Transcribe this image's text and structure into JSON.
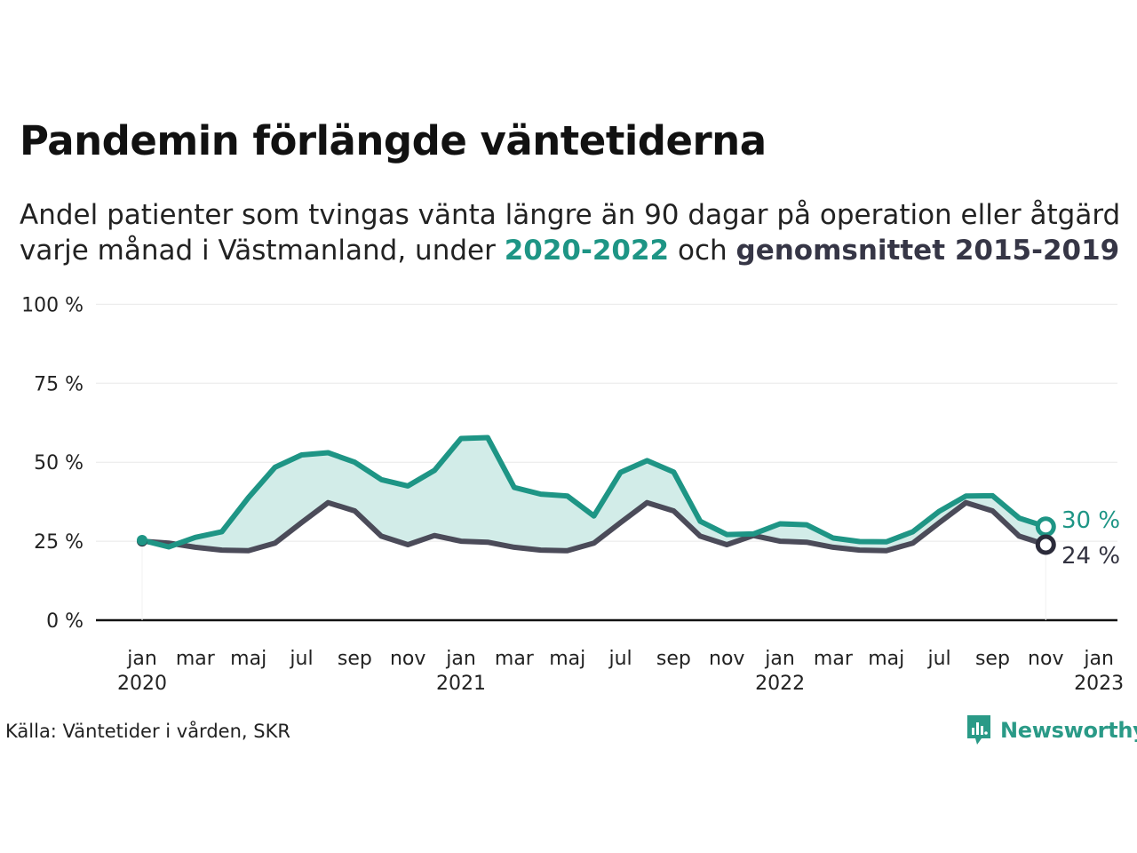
{
  "header": {
    "title": "Pandemin förlängde väntetiderna",
    "subtitle_line1": "Andel patienter som tvingas vänta längre än 90 dagar på operation eller åtgärd",
    "subtitle_line2_pre": "varje månad i Västmanland, under ",
    "subtitle_hl_a": "2020-2022",
    "subtitle_mid": " och ",
    "subtitle_hl_b": "genomsnittet 2015-2019"
  },
  "footer": {
    "source": "Källa: Väntetider i vården, SKR",
    "logo_text": "Newsworthy"
  },
  "colors": {
    "series_a": "#1e9585",
    "series_b": "#4b4b59",
    "marker_b": "#2b2b3a",
    "fill": "#d2ece8",
    "grid": "#e8e8e8",
    "axis": "#111111",
    "logo": "#2a9a87"
  },
  "chart_data": {
    "type": "line",
    "title": "Pandemin förlängde väntetiderna",
    "ylim": [
      0,
      100
    ],
    "y_ticks": [
      0,
      25,
      50,
      75,
      100
    ],
    "y_tick_labels": [
      "0 %",
      "25 %",
      "50 %",
      "75 %",
      "100 %"
    ],
    "x_tick_labels": [
      [
        "jan",
        "2020"
      ],
      [
        "mar",
        ""
      ],
      [
        "maj",
        ""
      ],
      [
        "jul",
        ""
      ],
      [
        "sep",
        ""
      ],
      [
        "nov",
        ""
      ],
      [
        "jan",
        "2021"
      ],
      [
        "mar",
        ""
      ],
      [
        "maj",
        ""
      ],
      [
        "jul",
        ""
      ],
      [
        "sep",
        ""
      ],
      [
        "nov",
        ""
      ],
      [
        "jan",
        "2022"
      ],
      [
        "mar",
        ""
      ],
      [
        "maj",
        ""
      ],
      [
        "jul",
        ""
      ],
      [
        "sep",
        ""
      ],
      [
        "nov",
        ""
      ],
      [
        "jan",
        "2023"
      ]
    ],
    "x": [
      "2020-01",
      "2020-02",
      "2020-03",
      "2020-04",
      "2020-05",
      "2020-06",
      "2020-07",
      "2020-08",
      "2020-09",
      "2020-10",
      "2020-11",
      "2020-12",
      "2021-01",
      "2021-02",
      "2021-03",
      "2021-04",
      "2021-05",
      "2021-06",
      "2021-07",
      "2021-08",
      "2021-09",
      "2021-10",
      "2021-11",
      "2021-12",
      "2022-01",
      "2022-02",
      "2022-03",
      "2022-04",
      "2022-05",
      "2022-06",
      "2022-07",
      "2022-08",
      "2022-09",
      "2022-10",
      "2022-11"
    ],
    "series": [
      {
        "name": "2020-2022",
        "end_label": "30 %",
        "values": [
          25.3,
          23.2,
          26.2,
          28.0,
          38.8,
          48.4,
          52.3,
          53.0,
          50.0,
          44.5,
          42.5,
          47.4,
          57.5,
          57.8,
          42.0,
          39.9,
          39.3,
          33.0,
          46.8,
          50.5,
          46.9,
          31.3,
          27.1,
          27.3,
          30.5,
          30.2,
          26.0,
          24.9,
          24.8,
          28.0,
          34.5,
          39.3,
          39.4,
          32.3,
          29.6
        ]
      },
      {
        "name": "genomsnittet 2015-2019",
        "end_label": "24 %",
        "values": [
          25.0,
          24.4,
          23.1,
          22.2,
          22.0,
          24.4,
          30.9,
          37.2,
          34.6,
          26.6,
          23.9,
          26.8,
          25.0,
          24.7,
          23.1,
          22.2,
          22.0,
          24.4,
          30.9,
          37.2,
          34.6,
          26.6,
          23.9,
          26.8,
          25.0,
          24.7,
          23.1,
          22.2,
          22.0,
          24.4,
          30.9,
          37.2,
          34.6,
          26.6,
          23.9
        ]
      }
    ]
  }
}
